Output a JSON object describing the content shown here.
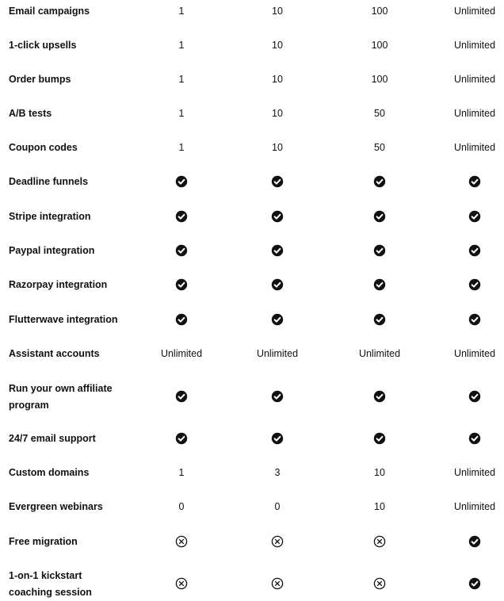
{
  "plans_columns": 4,
  "rows": [
    {
      "feature": "Email campaigns",
      "values": [
        {
          "text": "1"
        },
        {
          "text": "10"
        },
        {
          "text": "100"
        },
        {
          "text": "Unlimited"
        }
      ]
    },
    {
      "feature": "1-click upsells",
      "values": [
        {
          "text": "1"
        },
        {
          "text": "10"
        },
        {
          "text": "100"
        },
        {
          "text": "Unlimited"
        }
      ]
    },
    {
      "feature": "Order bumps",
      "values": [
        {
          "text": "1"
        },
        {
          "text": "10"
        },
        {
          "text": "100"
        },
        {
          "text": "Unlimited"
        }
      ]
    },
    {
      "feature": "A/B tests",
      "values": [
        {
          "text": "1"
        },
        {
          "text": "10"
        },
        {
          "text": "50"
        },
        {
          "text": "Unlimited"
        }
      ]
    },
    {
      "feature": "Coupon codes",
      "values": [
        {
          "text": "1"
        },
        {
          "text": "10"
        },
        {
          "text": "50"
        },
        {
          "text": "Unlimited"
        }
      ]
    },
    {
      "feature": "Deadline funnels",
      "values": [
        {
          "icon": "check-circle-icon"
        },
        {
          "icon": "check-circle-icon"
        },
        {
          "icon": "check-circle-icon"
        },
        {
          "icon": "check-circle-icon"
        }
      ]
    },
    {
      "feature": "Stripe integration",
      "values": [
        {
          "icon": "check-circle-icon"
        },
        {
          "icon": "check-circle-icon"
        },
        {
          "icon": "check-circle-icon"
        },
        {
          "icon": "check-circle-icon"
        }
      ]
    },
    {
      "feature": "Paypal integration",
      "values": [
        {
          "icon": "check-circle-icon"
        },
        {
          "icon": "check-circle-icon"
        },
        {
          "icon": "check-circle-icon"
        },
        {
          "icon": "check-circle-icon"
        }
      ]
    },
    {
      "feature": "Razorpay integration",
      "values": [
        {
          "icon": "check-circle-icon"
        },
        {
          "icon": "check-circle-icon"
        },
        {
          "icon": "check-circle-icon"
        },
        {
          "icon": "check-circle-icon"
        }
      ]
    },
    {
      "feature": "Flutterwave integration",
      "values": [
        {
          "icon": "check-circle-icon"
        },
        {
          "icon": "check-circle-icon"
        },
        {
          "icon": "check-circle-icon"
        },
        {
          "icon": "check-circle-icon"
        }
      ]
    },
    {
      "feature": "Assistant accounts",
      "values": [
        {
          "text": "Unlimited"
        },
        {
          "text": "Unlimited"
        },
        {
          "text": "Unlimited"
        },
        {
          "text": "Unlimited"
        }
      ]
    },
    {
      "feature": "Run your own affiliate program",
      "values": [
        {
          "icon": "check-circle-icon"
        },
        {
          "icon": "check-circle-icon"
        },
        {
          "icon": "check-circle-icon"
        },
        {
          "icon": "check-circle-icon"
        }
      ]
    },
    {
      "feature": "24/7 email support",
      "values": [
        {
          "icon": "check-circle-icon"
        },
        {
          "icon": "check-circle-icon"
        },
        {
          "icon": "check-circle-icon"
        },
        {
          "icon": "check-circle-icon"
        }
      ]
    },
    {
      "feature": "Custom domains",
      "values": [
        {
          "text": "1"
        },
        {
          "text": "3"
        },
        {
          "text": "10"
        },
        {
          "text": "Unlimited"
        }
      ]
    },
    {
      "feature": "Evergreen webinars",
      "values": [
        {
          "text": "0"
        },
        {
          "text": "0"
        },
        {
          "text": "10"
        },
        {
          "text": "Unlimited"
        }
      ]
    },
    {
      "feature": "Free migration",
      "values": [
        {
          "icon": "x-circle-icon"
        },
        {
          "icon": "x-circle-icon"
        },
        {
          "icon": "x-circle-icon"
        },
        {
          "icon": "check-circle-icon"
        }
      ]
    },
    {
      "feature": "1-on-1 kickstart coaching session",
      "values": [
        {
          "icon": "x-circle-icon"
        },
        {
          "icon": "x-circle-icon"
        },
        {
          "icon": "x-circle-icon"
        },
        {
          "icon": "check-circle-icon"
        }
      ]
    }
  ]
}
